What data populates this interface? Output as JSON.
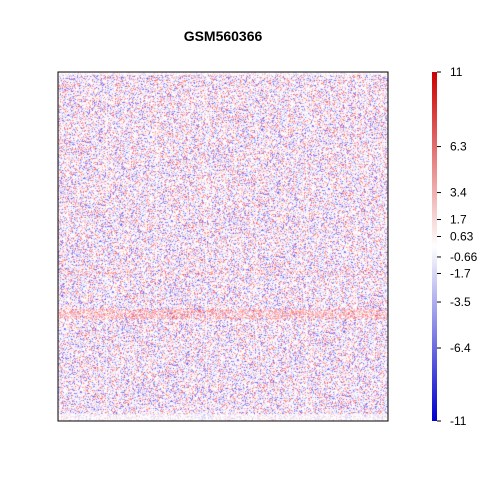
{
  "chart_data": {
    "type": "heatmap",
    "title": "GSM560366",
    "xlabel": "",
    "ylabel": "",
    "colorbar": {
      "range": [
        -11,
        11
      ],
      "colors": {
        "low": "#0000CC",
        "mid": "#FFFFFF",
        "high": "#CC0000"
      },
      "ticks": [
        {
          "value": 11,
          "label": "11"
        },
        {
          "value": 6.3,
          "label": "6.3"
        },
        {
          "value": 3.4,
          "label": "3.4"
        },
        {
          "value": 1.7,
          "label": "1.7"
        },
        {
          "value": 0.63,
          "label": "0.63"
        },
        {
          "value": -0.66,
          "label": "-0.66"
        },
        {
          "value": -1.7,
          "label": "-1.7"
        },
        {
          "value": -3.5,
          "label": "-3.5"
        },
        {
          "value": -6.4,
          "label": "-6.4"
        },
        {
          "value": -11,
          "label": "-11"
        }
      ]
    },
    "grid": false,
    "legend": "right"
  }
}
